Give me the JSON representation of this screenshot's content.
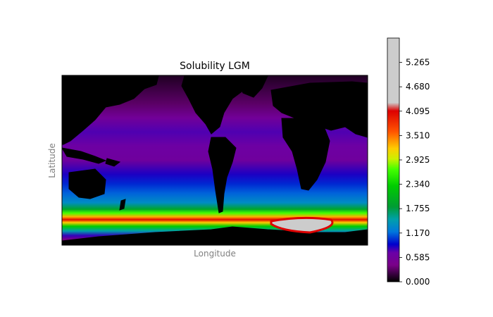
{
  "chart_data": {
    "type": "heatmap",
    "title": "Solubility LGM",
    "xlabel": "Longitude",
    "ylabel": "Latitude",
    "colorbar": {
      "ticks": [
        "0.000",
        "0.585",
        "1.170",
        "1.755",
        "2.340",
        "2.925",
        "3.510",
        "4.095",
        "4.680",
        "5.265"
      ],
      "range": [
        0.0,
        5.85
      ],
      "colormap": "nipy_spectral",
      "stops": [
        {
          "v": 0.0,
          "c": "#000000"
        },
        {
          "v": 0.4,
          "c": "#7a0088"
        },
        {
          "v": 0.7,
          "c": "#6a00a8"
        },
        {
          "v": 0.9,
          "c": "#0000cc"
        },
        {
          "v": 1.2,
          "c": "#0077dd"
        },
        {
          "v": 1.5,
          "c": "#00a0aa"
        },
        {
          "v": 1.8,
          "c": "#009c33"
        },
        {
          "v": 2.3,
          "c": "#00cc00"
        },
        {
          "v": 2.7,
          "c": "#44ff00"
        },
        {
          "v": 2.95,
          "c": "#ccf000"
        },
        {
          "v": 3.2,
          "c": "#ffcc00"
        },
        {
          "v": 3.6,
          "c": "#ff5500"
        },
        {
          "v": 4.1,
          "c": "#dd0000"
        },
        {
          "v": 4.3,
          "c": "#cccccc"
        },
        {
          "v": 5.85,
          "c": "#cccccc"
        }
      ]
    },
    "grid": false,
    "map_projection": "equirectangular, centered on 180°",
    "color_bands_by_latitude": [
      {
        "lat": 90,
        "value": 0.1
      },
      {
        "lat": 60,
        "value": 0.3
      },
      {
        "lat": 45,
        "value": 0.55
      },
      {
        "lat": 30,
        "value": 0.75
      },
      {
        "lat": 15,
        "value": 0.65
      },
      {
        "lat": 0,
        "value": 0.6
      },
      {
        "lat": -15,
        "value": 0.85
      },
      {
        "lat": -25,
        "value": 1.0
      },
      {
        "lat": -35,
        "value": 1.15
      },
      {
        "lat": -45,
        "value": 1.35
      },
      {
        "lat": -52,
        "value": 1.9
      },
      {
        "lat": -56,
        "value": 2.7
      },
      {
        "lat": -60,
        "value": 3.3
      },
      {
        "lat": -63,
        "value": 4.05
      },
      {
        "lat": -66,
        "value": 3.2
      },
      {
        "lat": -70,
        "value": 2.3
      },
      {
        "lat": -75,
        "value": 1.5
      },
      {
        "lat": -80,
        "value": 0.8
      },
      {
        "lat": -84,
        "value": 0.4
      },
      {
        "lat": -90,
        "value": 0.1
      }
    ]
  }
}
